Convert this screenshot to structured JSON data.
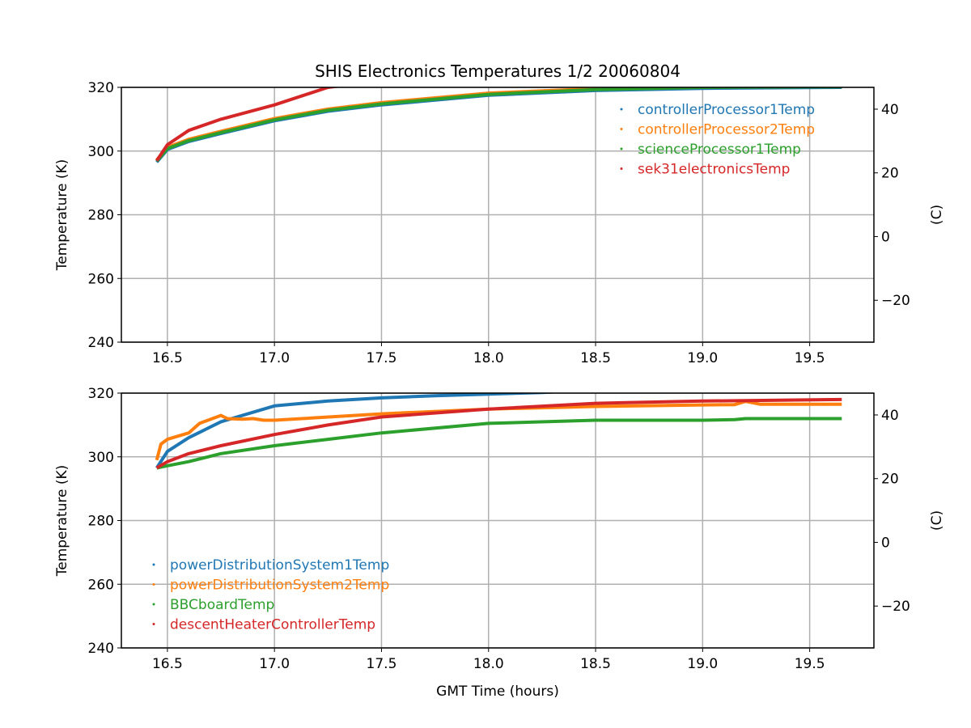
{
  "chart_data": [
    {
      "type": "line",
      "title": "SHIS Electronics Temperatures 1/2 20060804",
      "xlabel": "",
      "ylabel": "Temperature (K)",
      "ylabel_right": "(C)",
      "xlim": [
        16.285,
        19.8
      ],
      "ylim": [
        240,
        320
      ],
      "xticks": [
        "16.5",
        "17.0",
        "17.5",
        "18.0",
        "18.5",
        "19.0",
        "19.5"
      ],
      "yticks": [
        "240",
        "260",
        "280",
        "300",
        "320"
      ],
      "yticks_right": [
        "−20",
        "0",
        "20",
        "40"
      ],
      "grid": true,
      "legend_position": "top-right",
      "series": [
        {
          "name": "controllerProcessor1Temp",
          "color": "#1f77b4",
          "x": [
            16.45,
            16.5,
            16.6,
            16.75,
            17.0,
            17.25,
            17.5,
            17.75,
            18.0,
            18.5,
            19.0,
            19.65
          ],
          "y": [
            296.5,
            300.5,
            303,
            305.5,
            309.5,
            312.5,
            314.5,
            316,
            317.5,
            319,
            319.7,
            320
          ]
        },
        {
          "name": "controllerProcessor2Temp",
          "color": "#ff7f0e",
          "x": [
            16.45,
            16.5,
            16.6,
            16.75,
            17.0,
            17.25,
            17.5,
            17.75,
            18.0,
            18.5,
            19.0,
            19.65
          ],
          "y": [
            297.2,
            301.2,
            303.7,
            306.2,
            310.2,
            313.2,
            315.2,
            316.7,
            318.2,
            319.6,
            320.2,
            320.5
          ]
        },
        {
          "name": "scienceProcessor1Temp",
          "color": "#2ca02c",
          "x": [
            16.45,
            16.5,
            16.6,
            16.75,
            17.0,
            17.25,
            17.5,
            17.75,
            18.0,
            18.5,
            19.0,
            19.65
          ],
          "y": [
            296.8,
            300.8,
            303.3,
            305.8,
            309.8,
            312.8,
            314.8,
            316.3,
            317.8,
            319.3,
            320,
            320.2
          ]
        },
        {
          "name": "sek31electronicsTemp",
          "color": "#d62728",
          "x": [
            16.45,
            16.5,
            16.6,
            16.75,
            17.0,
            17.25,
            17.5,
            18.0
          ],
          "y": [
            297,
            302,
            306.5,
            310,
            314.5,
            320,
            322,
            324
          ]
        }
      ]
    },
    {
      "type": "line",
      "title": "",
      "xlabel": "GMT Time (hours)",
      "ylabel": "Temperature (K)",
      "ylabel_right": "(C)",
      "xlim": [
        16.285,
        19.8
      ],
      "ylim": [
        240,
        320
      ],
      "xticks": [
        "16.5",
        "17.0",
        "17.5",
        "18.0",
        "18.5",
        "19.0",
        "19.5"
      ],
      "yticks": [
        "240",
        "260",
        "280",
        "300",
        "320"
      ],
      "yticks_right": [
        "−20",
        "0",
        "20",
        "40"
      ],
      "grid": true,
      "legend_position": "bottom-left",
      "series": [
        {
          "name": "powerDistributionSystem1Temp",
          "color": "#1f77b4",
          "x": [
            16.45,
            16.5,
            16.6,
            16.75,
            17.0,
            17.25,
            17.5,
            17.75,
            18.0,
            18.25,
            18.5
          ],
          "y": [
            296.5,
            301.7,
            306,
            311,
            316,
            317.5,
            318.5,
            319.2,
            319.7,
            320.2,
            321
          ]
        },
        {
          "name": "powerDistributionSystem2Temp",
          "color": "#ff7f0e",
          "x": [
            16.45,
            16.47,
            16.5,
            16.6,
            16.65,
            16.75,
            16.78,
            16.85,
            16.9,
            16.95,
            17.0,
            17.5,
            18.0,
            18.5,
            19.0,
            19.15,
            19.2,
            19.27,
            19.65
          ],
          "y": [
            299,
            304,
            305.5,
            307.5,
            310.5,
            313,
            312,
            311.8,
            312,
            311.5,
            311.5,
            313.5,
            315,
            315.8,
            316.3,
            316.4,
            317.4,
            316.5,
            316.5
          ]
        },
        {
          "name": "BBCboardTemp",
          "color": "#2ca02c",
          "x": [
            16.45,
            16.5,
            16.6,
            16.75,
            17.0,
            17.25,
            17.5,
            18.0,
            18.5,
            19.0,
            19.15,
            19.2,
            19.65
          ],
          "y": [
            296.5,
            297.2,
            298.5,
            301,
            303.5,
            305.5,
            307.5,
            310.5,
            311.5,
            311.5,
            311.7,
            312,
            312
          ]
        },
        {
          "name": "descentHeaterControllerTemp",
          "color": "#d62728",
          "x": [
            16.45,
            16.5,
            16.6,
            16.75,
            17.0,
            17.25,
            17.5,
            18.0,
            18.5,
            19.0,
            19.65
          ],
          "y": [
            296.5,
            298.5,
            301,
            303.5,
            307,
            310,
            312.5,
            315,
            316.8,
            317.5,
            318
          ]
        }
      ]
    }
  ]
}
